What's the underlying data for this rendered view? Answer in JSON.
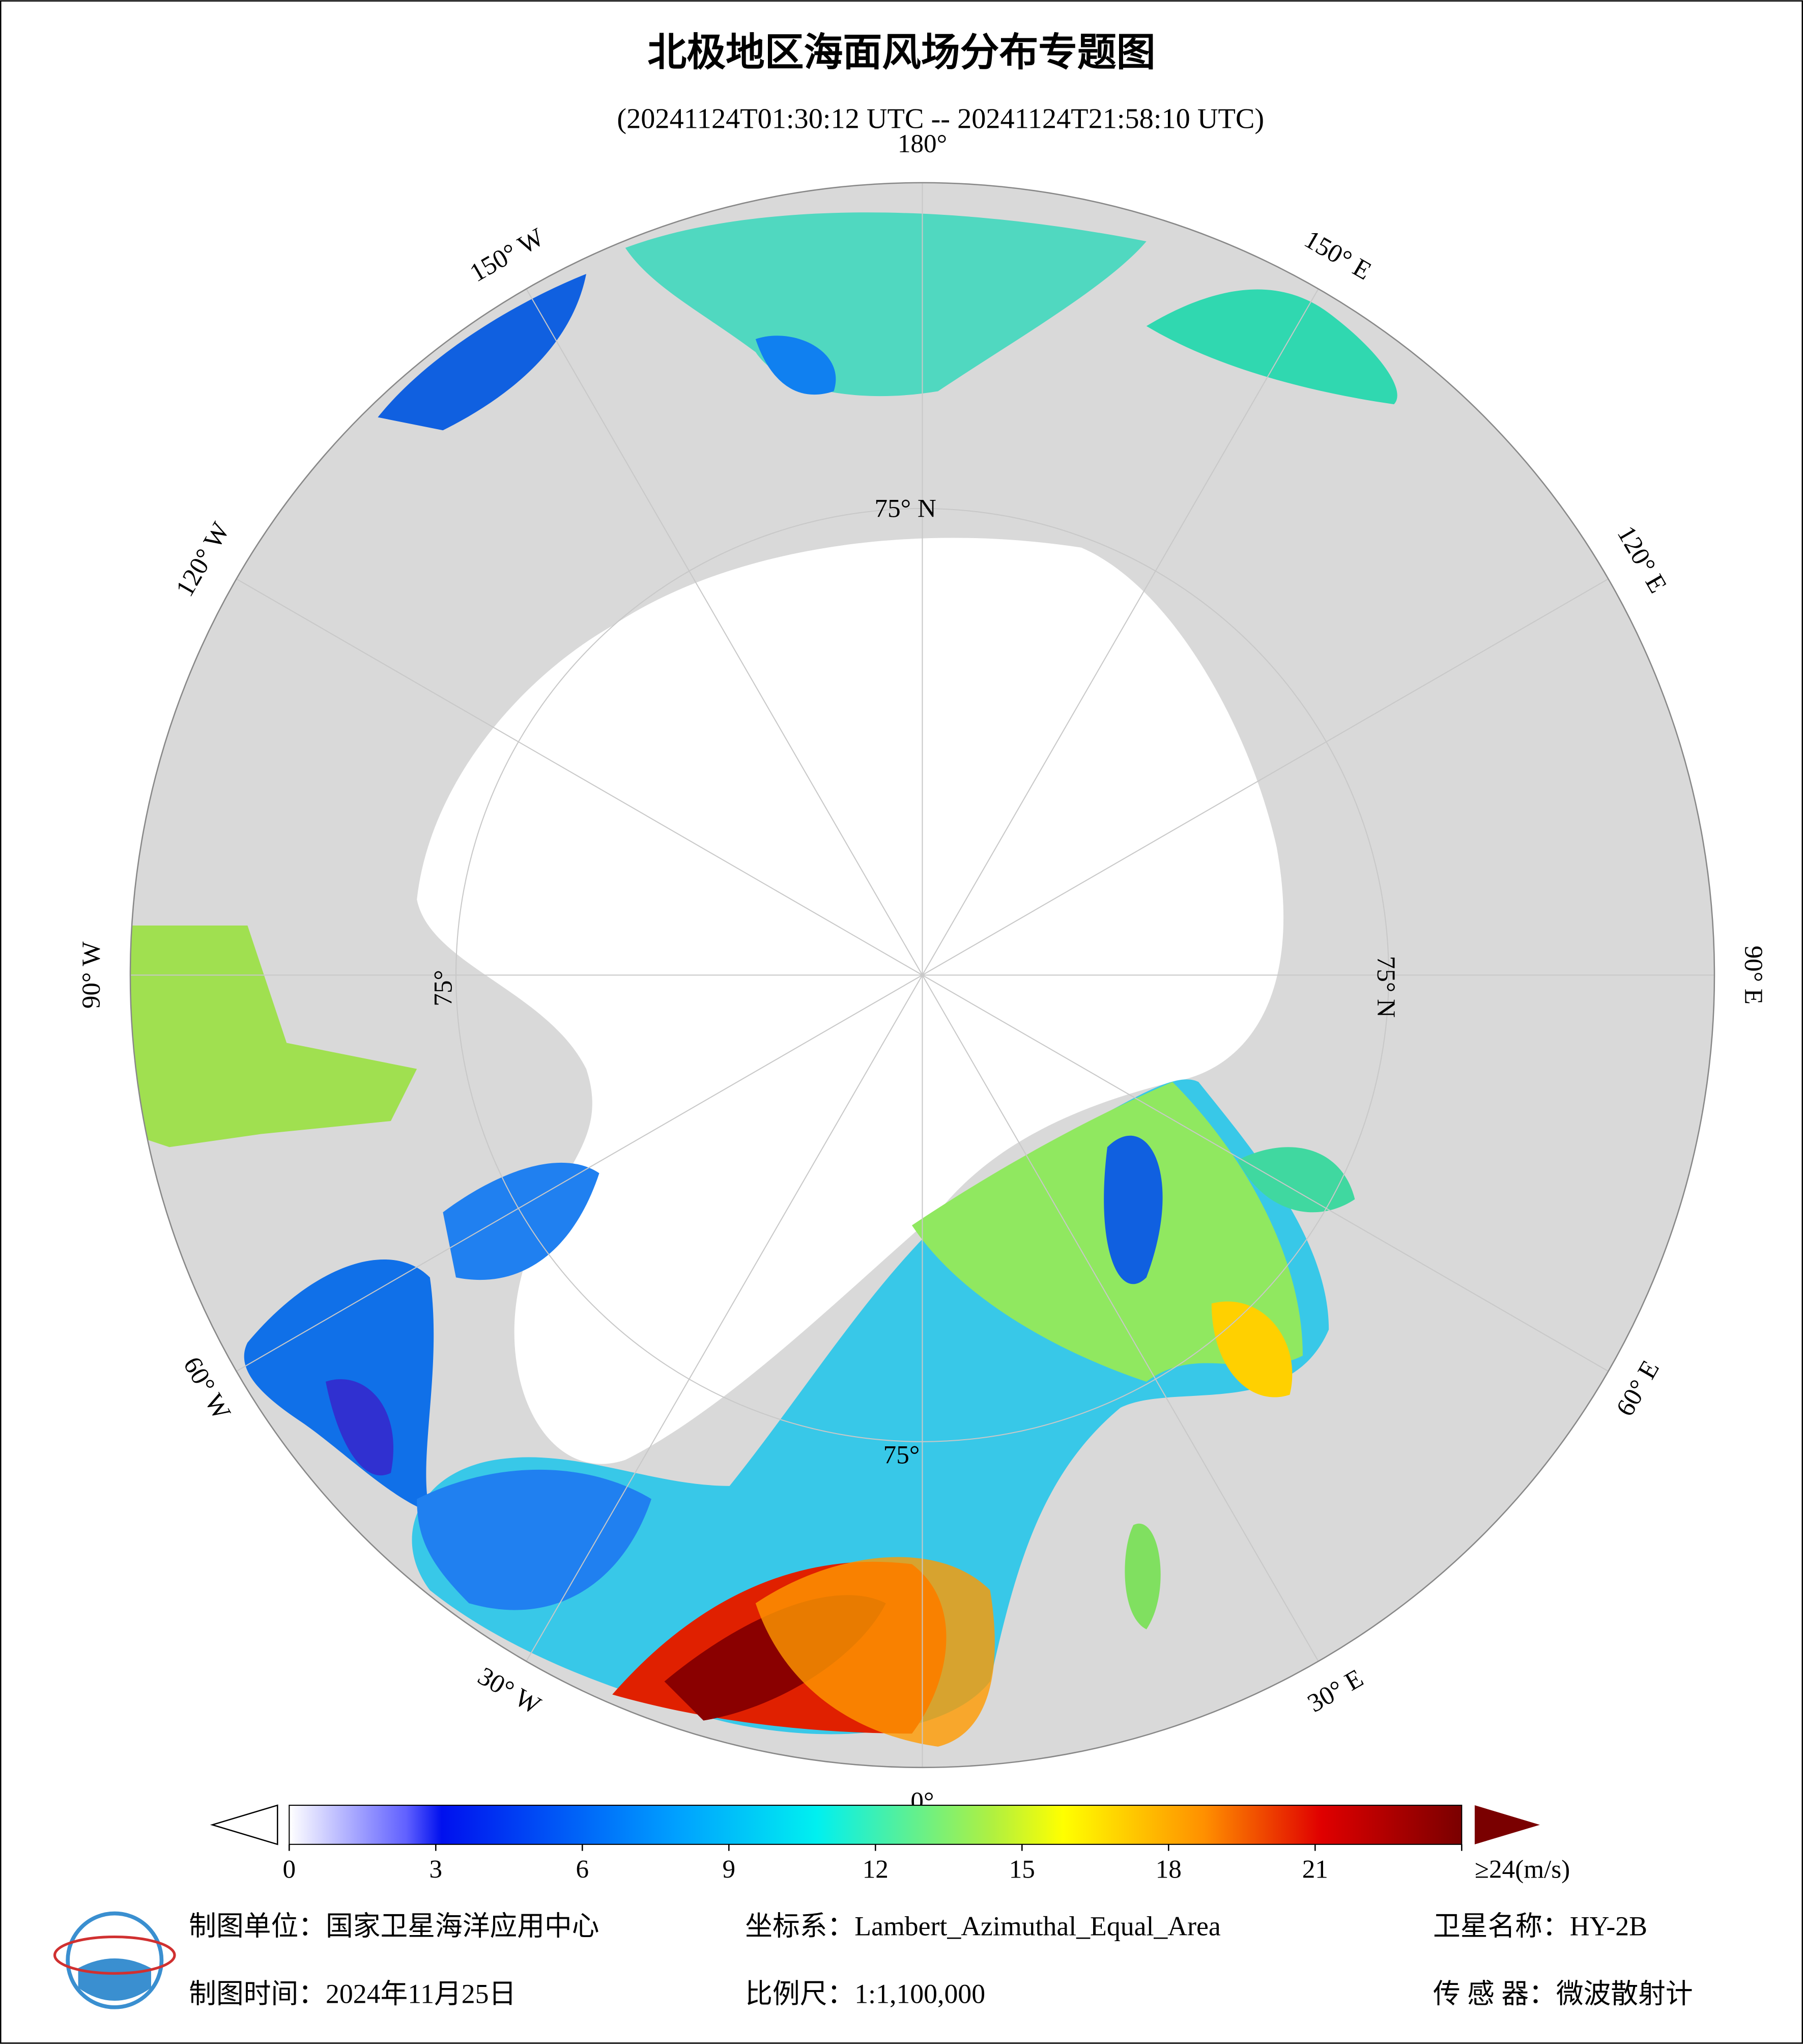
{
  "title": "北极地区海面风场分布专题图",
  "subtitle": "(20241124T01:30:12 UTC -- 20241124T21:58:10 UTC)",
  "lon_labels": [
    "180°",
    "150° E",
    "120° E",
    "90° E",
    "60° E",
    "30° E",
    "0°",
    "30° W",
    "60° W",
    "90° W",
    "120° W",
    "150° W"
  ],
  "lat_labels": [
    "75° N",
    "75° N",
    "75°",
    "75°"
  ],
  "colorbar": {
    "ticks": [
      0,
      3,
      6,
      9,
      12,
      15,
      18,
      21,
      {
        "value": 24,
        "label": "≥24(m/s)"
      }
    ],
    "lim": [
      0,
      24
    ]
  },
  "footer": {
    "unit": "制图单位：国家卫星海洋应用中心",
    "crs": "坐标系：Lambert_Azimuthal_Equal_Area",
    "satellite": "卫星名称：HY-2B",
    "date": "制图时间：2024年11月25日",
    "scale": "比例尺：1:1,100,000",
    "sensor": "传 感 器：微波散射计"
  }
}
